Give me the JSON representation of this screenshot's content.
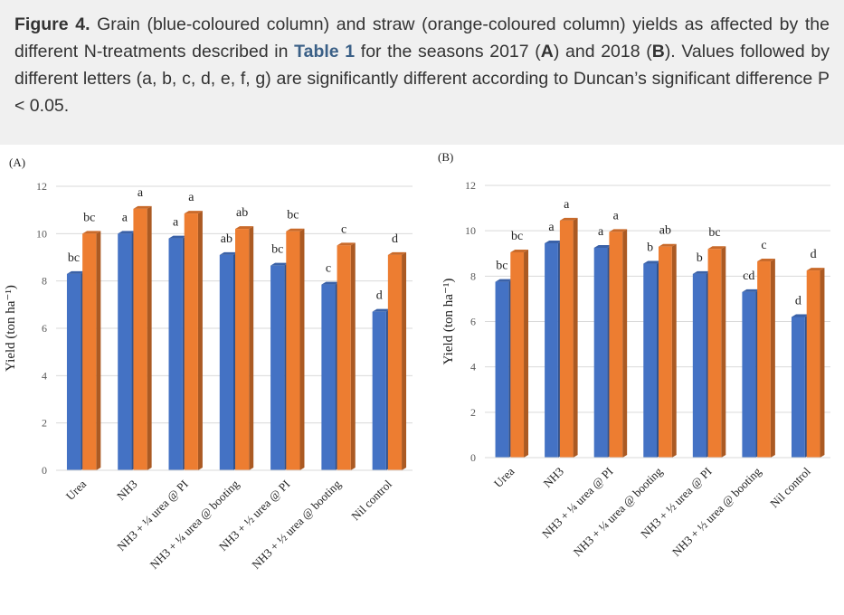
{
  "caption": {
    "figure_label": "Figure 4.",
    "text_1": " Grain (blue-coloured column) and straw (orange-coloured column) yields as affected by the different N-treatments described in ",
    "table_ref": "Table 1",
    "text_2": " for the seasons 2017 (",
    "season_a": "A",
    "text_3": ") and 2018 (",
    "season_b": "B",
    "text_4": "). Values followed by different letters (a, b, c, d, e, f, g) are significantly different according to Duncan’s significant difference P < 0.05."
  },
  "colors": {
    "grain": "#4472c4",
    "straw": "#ed7d31",
    "grid": "#d9d9d9",
    "axis_text": "#595959"
  },
  "chart_data": [
    {
      "type": "bar",
      "panel_label": "(A)",
      "ylabel": "Yield (ton ha⁻¹)",
      "ylim": [
        0,
        12
      ],
      "yticks": [
        0,
        2,
        4,
        6,
        8,
        10,
        12
      ],
      "grid": true,
      "categories": [
        "Urea",
        "NH3",
        "NH3 + ¼ urea @ PI",
        "NH3 + ¼ urea @ booting",
        "NH3 + ½ urea @ PI",
        "NH3 + ½ urea @ booting",
        "Nil control"
      ],
      "series": [
        {
          "key": "grain",
          "values": [
            8.3,
            10.0,
            9.8,
            9.1,
            8.65,
            7.85,
            6.7
          ],
          "letters": [
            "bc",
            "a",
            "a",
            "ab",
            "bc",
            "c",
            "d"
          ]
        },
        {
          "key": "straw",
          "values": [
            10.0,
            11.05,
            10.85,
            10.2,
            10.1,
            9.5,
            9.1
          ],
          "letters": [
            "bc",
            "a",
            "a",
            "ab",
            "bc",
            "c",
            "d"
          ]
        }
      ]
    },
    {
      "type": "bar",
      "panel_label": "(B)",
      "ylabel": "Yield (ton ha⁻¹)",
      "ylim": [
        0,
        12
      ],
      "yticks": [
        0,
        2,
        4,
        6,
        8,
        10,
        12
      ],
      "grid": true,
      "categories": [
        "Urea",
        "NH3",
        "NH3 + ¼ urea @ PI",
        "NH3 + ¼ urea @ booting",
        "NH3 + ½ urea @ PI",
        "NH3 + ½ urea @ booting",
        "Nil control"
      ],
      "series": [
        {
          "key": "grain",
          "values": [
            7.75,
            9.45,
            9.25,
            8.55,
            8.1,
            7.3,
            6.2
          ],
          "letters": [
            "bc",
            "a",
            "a",
            "b",
            "b",
            "cd",
            "d"
          ]
        },
        {
          "key": "straw",
          "values": [
            9.05,
            10.45,
            9.95,
            9.3,
            9.2,
            8.65,
            8.25
          ],
          "letters": [
            "bc",
            "a",
            "a",
            "ab",
            "bc",
            "c",
            "d"
          ]
        }
      ]
    }
  ]
}
